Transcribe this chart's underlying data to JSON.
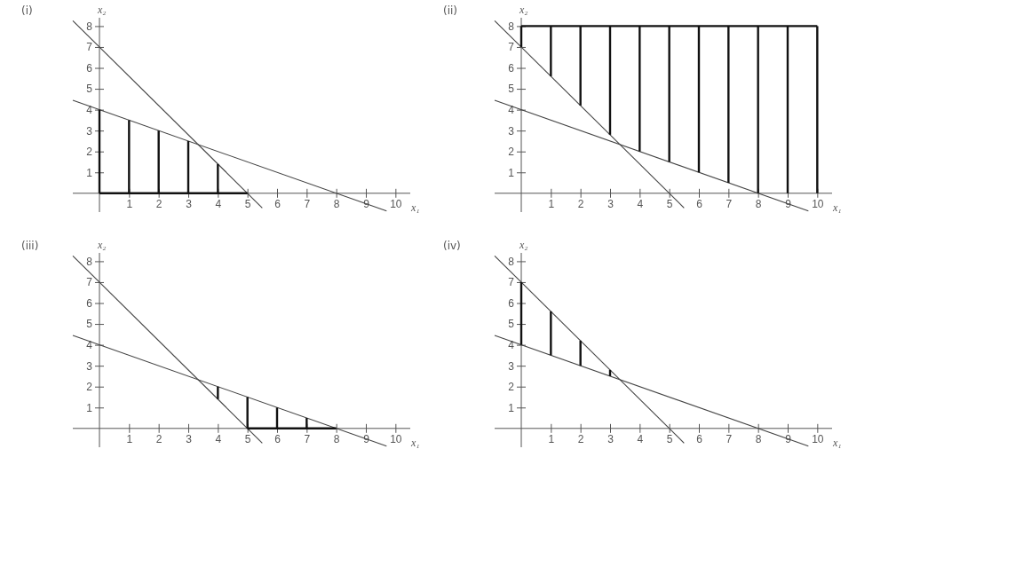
{
  "chart_data": [
    {
      "type": "line",
      "title": "(i)",
      "xlabel": "x₁",
      "ylabel": "x₂",
      "xlim": [
        -0.9,
        10.5
      ],
      "ylim": [
        -0.9,
        8.4
      ],
      "xticks": [
        1,
        2,
        3,
        4,
        5,
        6,
        7,
        8,
        9,
        10
      ],
      "yticks": [
        1,
        2,
        3,
        4,
        5,
        6,
        7,
        8
      ],
      "series": [
        {
          "color": "#444444",
          "x": [
            -0.9,
            5.5
          ],
          "values": [
            8.26,
            -0.7
          ]
        },
        {
          "color": "#444444",
          "x": [
            -0.9,
            9.7
          ],
          "values": [
            4.45,
            -0.85
          ]
        },
        {
          "color": "#111111",
          "x": [
            0,
            5
          ],
          "values": [
            0,
            0
          ]
        },
        {
          "color": "#111111",
          "x": [
            0,
            0
          ],
          "values": [
            0,
            4
          ]
        },
        {
          "color": "#111111",
          "x": [
            1,
            1
          ],
          "values": [
            0,
            3.5
          ]
        },
        {
          "color": "#111111",
          "x": [
            2,
            2
          ],
          "values": [
            0,
            3
          ]
        },
        {
          "color": "#111111",
          "x": [
            3,
            3
          ],
          "values": [
            0,
            2.5
          ]
        },
        {
          "color": "#111111",
          "x": [
            4,
            4
          ],
          "values": [
            0,
            1.4
          ]
        }
      ]
    },
    {
      "type": "line",
      "title": "(ii)",
      "xlabel": "x₁",
      "ylabel": "x₂",
      "xlim": [
        -0.9,
        10.5
      ],
      "ylim": [
        -0.9,
        8.4
      ],
      "xticks": [
        1,
        2,
        3,
        4,
        5,
        6,
        7,
        8,
        9,
        10
      ],
      "yticks": [
        1,
        2,
        3,
        4,
        5,
        6,
        7,
        8
      ],
      "series": [
        {
          "color": "#444444",
          "x": [
            -0.9,
            5.5
          ],
          "values": [
            8.26,
            -0.7
          ]
        },
        {
          "color": "#444444",
          "x": [
            -0.9,
            9.7
          ],
          "values": [
            4.45,
            -0.85
          ]
        },
        {
          "color": "#111111",
          "x": [
            0,
            10
          ],
          "values": [
            8,
            8
          ]
        },
        {
          "color": "#111111",
          "x": [
            0,
            0
          ],
          "values": [
            7,
            8
          ]
        },
        {
          "color": "#111111",
          "x": [
            1,
            1
          ],
          "values": [
            5.6,
            8
          ]
        },
        {
          "color": "#111111",
          "x": [
            2,
            2
          ],
          "values": [
            4.2,
            8
          ]
        },
        {
          "color": "#111111",
          "x": [
            3,
            3
          ],
          "values": [
            2.8,
            8
          ]
        },
        {
          "color": "#111111",
          "x": [
            4,
            4
          ],
          "values": [
            2,
            8
          ]
        },
        {
          "color": "#111111",
          "x": [
            5,
            5
          ],
          "values": [
            1.5,
            8
          ]
        },
        {
          "color": "#111111",
          "x": [
            6,
            6
          ],
          "values": [
            1,
            8
          ]
        },
        {
          "color": "#111111",
          "x": [
            7,
            7
          ],
          "values": [
            0.5,
            8
          ]
        },
        {
          "color": "#111111",
          "x": [
            8,
            8
          ],
          "values": [
            0,
            8
          ]
        },
        {
          "color": "#111111",
          "x": [
            9,
            9
          ],
          "values": [
            0,
            8
          ]
        },
        {
          "color": "#111111",
          "x": [
            10,
            10
          ],
          "values": [
            0,
            8
          ]
        }
      ]
    },
    {
      "type": "line",
      "title": "(iii)",
      "xlabel": "x₁",
      "ylabel": "x₂",
      "xlim": [
        -0.9,
        10.5
      ],
      "ylim": [
        -0.9,
        8.4
      ],
      "xticks": [
        1,
        2,
        3,
        4,
        5,
        6,
        7,
        8,
        9,
        10
      ],
      "yticks": [
        1,
        2,
        3,
        4,
        5,
        6,
        7,
        8
      ],
      "series": [
        {
          "color": "#444444",
          "x": [
            -0.9,
            5.5
          ],
          "values": [
            8.26,
            -0.7
          ]
        },
        {
          "color": "#444444",
          "x": [
            -0.9,
            9.7
          ],
          "values": [
            4.45,
            -0.85
          ]
        },
        {
          "color": "#111111",
          "x": [
            5,
            8
          ],
          "values": [
            0,
            0
          ]
        },
        {
          "color": "#111111",
          "x": [
            4,
            4
          ],
          "values": [
            1.4,
            2
          ]
        },
        {
          "color": "#111111",
          "x": [
            5,
            5
          ],
          "values": [
            0,
            1.5
          ]
        },
        {
          "color": "#111111",
          "x": [
            6,
            6
          ],
          "values": [
            0,
            1
          ]
        },
        {
          "color": "#111111",
          "x": [
            7,
            7
          ],
          "values": [
            0,
            0.5
          ]
        }
      ]
    },
    {
      "type": "line",
      "title": "(iv)",
      "xlabel": "x₁",
      "ylabel": "x₂",
      "xlim": [
        -0.9,
        10.5
      ],
      "ylim": [
        -0.9,
        8.4
      ],
      "xticks": [
        1,
        2,
        3,
        4,
        5,
        6,
        7,
        8,
        9,
        10
      ],
      "yticks": [
        1,
        2,
        3,
        4,
        5,
        6,
        7,
        8
      ],
      "series": [
        {
          "color": "#444444",
          "x": [
            -0.9,
            5.5
          ],
          "values": [
            8.26,
            -0.7
          ]
        },
        {
          "color": "#444444",
          "x": [
            -0.9,
            9.7
          ],
          "values": [
            4.45,
            -0.85
          ]
        },
        {
          "color": "#111111",
          "x": [
            0,
            0
          ],
          "values": [
            4,
            7
          ]
        },
        {
          "color": "#111111",
          "x": [
            1,
            1
          ],
          "values": [
            3.5,
            5.6
          ]
        },
        {
          "color": "#111111",
          "x": [
            2,
            2
          ],
          "values": [
            3,
            4.2
          ]
        },
        {
          "color": "#111111",
          "x": [
            3,
            3
          ],
          "values": [
            2.5,
            2.8
          ]
        }
      ]
    }
  ]
}
